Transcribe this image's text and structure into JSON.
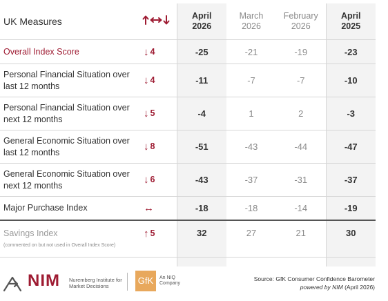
{
  "header": {
    "measure_label": "UK Measures",
    "change_icon": "up-left-right-down-arrows",
    "months": [
      {
        "line1": "April",
        "line2": "2026"
      },
      {
        "line1": "March",
        "line2": "2026"
      },
      {
        "line1": "February",
        "line2": "2026"
      },
      {
        "line1": "April",
        "line2": "2025"
      }
    ]
  },
  "rows": [
    {
      "name": "Overall Index Score",
      "arrow": "↓",
      "change": "4",
      "values": [
        "-25",
        "-21",
        "-19",
        "-23"
      ]
    },
    {
      "name": "Personal Financial Situation over last 12 months",
      "arrow": "↓",
      "change": "4",
      "values": [
        "-11",
        "-7",
        "-7",
        "-10"
      ]
    },
    {
      "name": "Personal Financial Situation over next 12 months",
      "arrow": "↓",
      "change": "5",
      "values": [
        "-4",
        "1",
        "2",
        "-3"
      ]
    },
    {
      "name": "General Economic Situation over last 12 months",
      "arrow": "↓",
      "change": "8",
      "values": [
        "-51",
        "-43",
        "-44",
        "-47"
      ]
    },
    {
      "name": "General Economic Situation over next 12 months",
      "arrow": "↓",
      "change": "6",
      "values": [
        "-43",
        "-37",
        "-31",
        "-37"
      ]
    },
    {
      "name": "Major Purchase Index",
      "arrow": "↔",
      "change": "",
      "values": [
        "-18",
        "-18",
        "-14",
        "-19"
      ]
    },
    {
      "name": "Savings Index",
      "note": "(commented on but not used in Overall Index Score)",
      "arrow": "↑",
      "change": "5",
      "values": [
        "32",
        "27",
        "21",
        "30"
      ]
    }
  ],
  "footer": {
    "nim_name": "NIM",
    "nim_sub": "Nuremberg Institute for Market Decisions",
    "gfk_name": "GfK",
    "gfk_sub_line1": "An NIQ",
    "gfk_sub_line2": "Company",
    "source_line": "Source: GfK Consumer Confidence Barometer",
    "powered_label": "powered by NIM",
    "powered_date": "(April 2026)"
  },
  "colors": {
    "accent": "#9e1b32",
    "shade": "#f3f3f3",
    "gfk": "#e8a85c"
  }
}
